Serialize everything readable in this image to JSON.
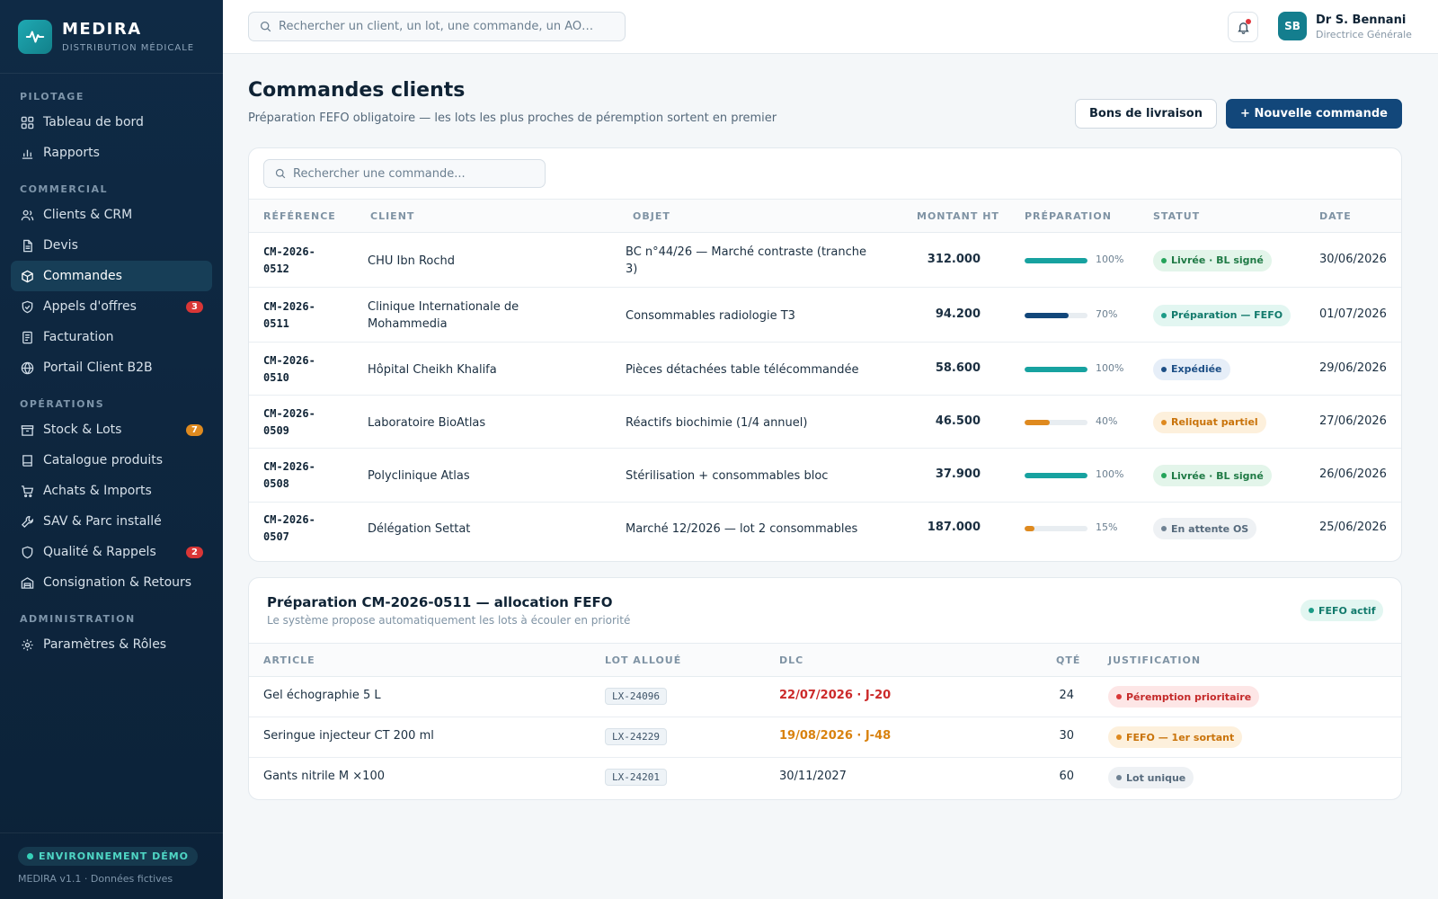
{
  "brand": {
    "name": "MEDIRA",
    "subtitle": "DISTRIBUTION MÉDICALE"
  },
  "sidebar": {
    "sections": [
      {
        "title": "PILOTAGE",
        "items": [
          {
            "label": "Tableau de bord",
            "icon": "grid-icon"
          },
          {
            "label": "Rapports",
            "icon": "bar-chart-icon"
          }
        ]
      },
      {
        "title": "COMMERCIAL",
        "items": [
          {
            "label": "Clients & CRM",
            "icon": "users-icon"
          },
          {
            "label": "Devis",
            "icon": "document-icon"
          },
          {
            "label": "Commandes",
            "icon": "box-icon",
            "active": true
          },
          {
            "label": "Appels d'offres",
            "icon": "shield-check-icon",
            "badge": "3"
          },
          {
            "label": "Facturation",
            "icon": "receipt-icon"
          },
          {
            "label": "Portail Client B2B",
            "icon": "globe-icon"
          }
        ]
      },
      {
        "title": "OPÉRATIONS",
        "items": [
          {
            "label": "Stock & Lots",
            "icon": "package-icon",
            "badge": "7"
          },
          {
            "label": "Catalogue produits",
            "icon": "book-icon"
          },
          {
            "label": "Achats & Imports",
            "icon": "cart-icon"
          },
          {
            "label": "SAV & Parc installé",
            "icon": "wrench-icon"
          },
          {
            "label": "Qualité & Rappels",
            "icon": "shield-icon",
            "badge": "2"
          },
          {
            "label": "Consignation & Retours",
            "icon": "warehouse-icon"
          }
        ]
      },
      {
        "title": "ADMINISTRATION",
        "items": [
          {
            "label": "Paramètres & Rôles",
            "icon": "gear-icon"
          }
        ]
      }
    ],
    "env_label": "ENVIRONNEMENT DÉMO",
    "version": "MEDIRA v1.1 · Données fictives"
  },
  "topbar": {
    "search_placeholder": "Rechercher un client, un lot, une commande, un AO…",
    "user_initials": "SB",
    "user_name": "Dr S. Bennani",
    "user_role": "Directrice Générale"
  },
  "page": {
    "title": "Commandes clients",
    "subtitle": "Préparation FEFO obligatoire — les lots les plus proches de péremption sortent en premier",
    "btn_delivery": "Bons de livraison",
    "btn_new": "+ Nouvelle commande"
  },
  "orders": {
    "search_placeholder": "Rechercher une commande...",
    "columns": [
      "RÉFÉRENCE",
      "CLIENT",
      "OBJET",
      "MONTANT HT",
      "PRÉPARATION",
      "STATUT",
      "DATE"
    ],
    "rows": [
      {
        "ref1": "CM-2026-",
        "ref2": "0512",
        "client1": "CHU Ibn Rochd",
        "client2": "",
        "object1": "BC n°44/26 — Marché contraste (tranche",
        "object2": "3)",
        "amount": "312.000",
        "progress": 100,
        "progress_label": "100%",
        "status": "Livrée · BL signé",
        "status_kind": "green",
        "date": "30/06/2026"
      },
      {
        "ref1": "CM-2026-",
        "ref2": "0511",
        "client1": "Clinique Internationale de",
        "client2": "Mohammedia",
        "object1": "Consommables radiologie T3",
        "object2": "",
        "amount": "94.200",
        "progress": 70,
        "progress_label": "70%",
        "status": "Préparation — FEFO",
        "status_kind": "teal",
        "date": "01/07/2026"
      },
      {
        "ref1": "CM-2026-",
        "ref2": "0510",
        "client1": "Hôpital Cheikh Khalifa",
        "client2": "",
        "object1": "Pièces détachées table télécommandée",
        "object2": "",
        "amount": "58.600",
        "progress": 100,
        "progress_label": "100%",
        "status": "Expédiée",
        "status_kind": "blue",
        "date": "29/06/2026"
      },
      {
        "ref1": "CM-2026-",
        "ref2": "0509",
        "client1": "Laboratoire BioAtlas",
        "client2": "",
        "object1": "Réactifs biochimie (1/4 annuel)",
        "object2": "",
        "amount": "46.500",
        "progress": 40,
        "progress_label": "40%",
        "status": "Reliquat partiel",
        "status_kind": "orange",
        "date": "27/06/2026"
      },
      {
        "ref1": "CM-2026-",
        "ref2": "0508",
        "client1": "Polyclinique Atlas",
        "client2": "",
        "object1": "Stérilisation + consommables bloc",
        "object2": "",
        "amount": "37.900",
        "progress": 100,
        "progress_label": "100%",
        "status": "Livrée · BL signé",
        "status_kind": "green",
        "date": "26/06/2026"
      },
      {
        "ref1": "CM-2026-",
        "ref2": "0507",
        "client1": "Délégation Settat",
        "client2": "",
        "object1": "Marché 12/2026 — lot 2 consommables",
        "object2": "",
        "amount": "187.000",
        "progress": 15,
        "progress_label": "15%",
        "status": "En attente OS",
        "status_kind": "gray",
        "date": "25/06/2026"
      }
    ]
  },
  "fefo": {
    "title": "Préparation CM-2026-0511 — allocation FEFO",
    "subtitle": "Le système propose automatiquement les lots à écouler en priorité",
    "badge": "FEFO actif",
    "columns": [
      "ARTICLE",
      "LOT ALLOUÉ",
      "DLC",
      "QTÉ",
      "JUSTIFICATION"
    ],
    "rows": [
      {
        "article": "Gel échographie 5 L",
        "lot": "LX-24096",
        "dlc": "22/07/2026 · J-20",
        "dlc_kind": "red",
        "qty": "24",
        "just": "Péremption prioritaire",
        "just_kind": "red"
      },
      {
        "article": "Seringue injecteur CT 200 ml",
        "lot": "LX-24229",
        "dlc": "19/08/2026 · J-48",
        "dlc_kind": "orange",
        "qty": "30",
        "just": "FEFO — 1er sortant",
        "just_kind": "orange"
      },
      {
        "article": "Gants nitrile M ×100",
        "lot": "LX-24201",
        "dlc": "30/11/2027",
        "dlc_kind": "normal",
        "qty": "60",
        "just": "Lot unique",
        "just_kind": "gray"
      }
    ]
  },
  "colors": {
    "sidebar": "#0f2a45",
    "primary": "#12477a",
    "teal": "#17a2a0",
    "orange": "#df8a1f",
    "red": "#d93636"
  }
}
